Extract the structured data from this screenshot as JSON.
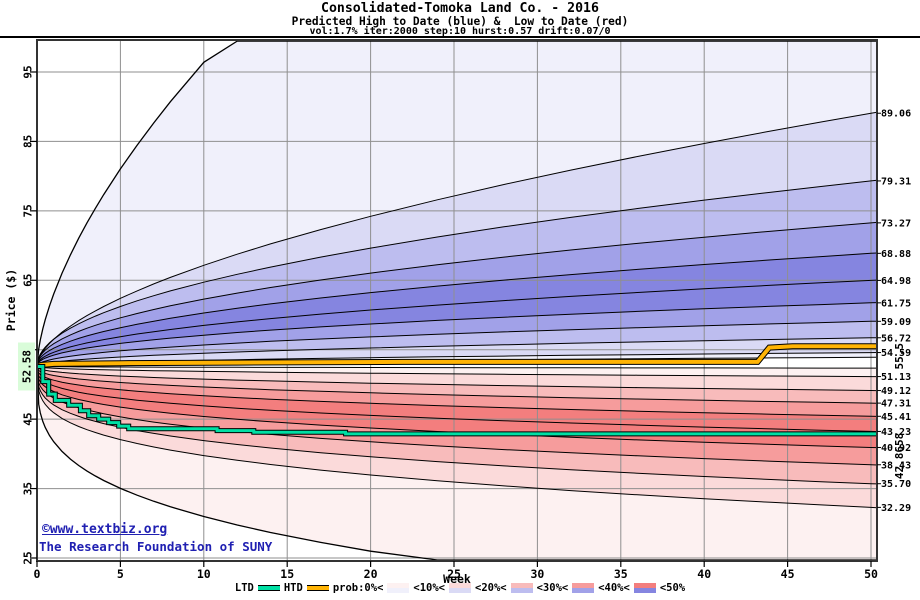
{
  "header": {
    "title": "Consolidated-Tomoka Land Co. - 2016",
    "subtitle": "Predicted High to Date (blue) &  Low to Date (red)",
    "params": "vol:1.7% iter:2000 step:10 hurst:0.57 drift:0.07/0"
  },
  "y_axis": {
    "title": "Price ($)",
    "ticks": [
      "25",
      "35",
      "45",
      "55",
      "65",
      "75",
      "85",
      "95"
    ]
  },
  "x_axis": {
    "title": "Week",
    "ticks": [
      "0",
      "5",
      "10",
      "15",
      "20",
      "25",
      "30",
      "35",
      "40",
      "45",
      "50"
    ]
  },
  "start_price_label": "52.58",
  "side_labels": {
    "htd_final": "55.5",
    "ltd_final": "42.8658"
  },
  "watermark": {
    "line1": "©www.textbiz.org",
    "line2": "The Research Foundation of SUNY"
  },
  "legend": {
    "ltd": "LTD",
    "htd": "HTD",
    "prob_labels": [
      "prob:0%<",
      "<10%<",
      "<20%<",
      "<30%<",
      "<40%<",
      "<50%"
    ]
  },
  "colors": {
    "red_shades": [
      "#fdf1f1",
      "#fbdada",
      "#f8bbbb",
      "#f69c9c",
      "#f37e7e"
    ],
    "blue_shades": [
      "#f0f0fb",
      "#dadaf5",
      "#bdbdef",
      "#a1a1e8",
      "#8585e0"
    ],
    "ltd": "#00dfa4",
    "htd": "#ffb405",
    "grid": "#8f8f8f",
    "frame": "#333333",
    "curve": "#000000",
    "watermark": "#2020b2",
    "htd_label": "#bf9000",
    "ltd_label": "#00a878",
    "start_badge_bg": "#d9fcd9"
  },
  "chart_data": {
    "type": "area",
    "title": "Consolidated-Tomoka Land Co. - 2016",
    "subtitle": "Predicted High to Date (blue) & Low to Date (red)",
    "xlabel": "Week",
    "ylabel": "Price ($)",
    "xlim": [
      0,
      50
    ],
    "ylim": [
      25,
      99
    ],
    "grid": true,
    "legend_position": "bottom",
    "start": {
      "week": 0,
      "price": 52.58
    },
    "high_percentiles": {
      "ends": [
        "89.06",
        "79.31",
        "73.27",
        "68.88",
        "64.98",
        "61.75",
        "59.09",
        "56.72",
        "54.59"
      ],
      "exps": [
        0.57,
        0.49,
        0.47,
        0.465,
        0.46,
        0.44,
        0.46,
        0.48,
        0.5
      ]
    },
    "low_percentiles": {
      "ends": [
        "51.13",
        "49.12",
        "47.31",
        "45.41",
        "43.23",
        "40.92",
        "38.43",
        "35.70",
        "32.29"
      ],
      "exps": [
        0.45,
        0.4,
        0.36,
        0.33,
        0.31,
        0.3,
        0.29,
        0.285,
        0.285
      ]
    },
    "inner_high": {
      "end": 53.9,
      "exp": 0.5
    },
    "inner_low": {
      "end": 52.35,
      "exp": 0.5
    },
    "upper_envelope": {
      "coef": 10.44,
      "exp": 0.623
    },
    "lower_envelope": {
      "coef": 10.83,
      "exp": 0.3
    },
    "htd_steps": [
      [
        0,
        52.58
      ],
      [
        0.25,
        52.8
      ],
      [
        1,
        52.95
      ],
      [
        5,
        53.05
      ],
      [
        12,
        53.15
      ],
      [
        22,
        53.25
      ],
      [
        43.2,
        53.25
      ],
      [
        43.9,
        55.3
      ],
      [
        45.3,
        55.5
      ],
      [
        50.36,
        55.5
      ]
    ],
    "ltd_steps": [
      [
        0,
        52.58
      ],
      [
        0.35,
        50.4
      ],
      [
        0.7,
        48.6
      ],
      [
        1.1,
        47.7
      ],
      [
        1.9,
        47.0
      ],
      [
        2.6,
        46.2
      ],
      [
        3.1,
        45.5
      ],
      [
        3.7,
        45.0
      ],
      [
        4.3,
        44.5
      ],
      [
        4.9,
        44.0
      ],
      [
        5.5,
        43.62
      ],
      [
        10.8,
        43.35
      ],
      [
        13,
        43.1
      ],
      [
        18.5,
        42.87
      ],
      [
        50.36,
        42.87
      ]
    ],
    "htd_final": 55.5,
    "ltd_final": 42.8658
  }
}
